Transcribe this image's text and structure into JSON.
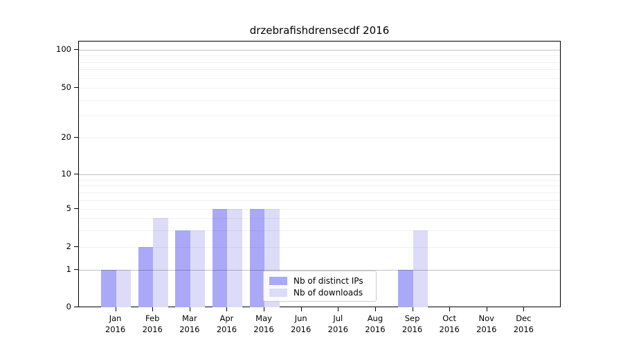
{
  "chart_data": {
    "type": "bar",
    "title": "drzebrafishdrensecdf 2016",
    "categories": [
      "Jan 2016",
      "Feb 2016",
      "Mar 2016",
      "Apr 2016",
      "May 2016",
      "Jun 2016",
      "Jul 2016",
      "Aug 2016",
      "Sep 2016",
      "Oct 2016",
      "Nov 2016",
      "Dec 2016"
    ],
    "series": [
      {
        "name": "Nb of distinct IPs",
        "color": "#a9a9f7",
        "values": [
          1,
          2,
          3,
          5,
          5,
          null,
          null,
          null,
          1,
          null,
          null,
          null
        ]
      },
      {
        "name": "Nb of downloads",
        "color": "#dcdcf8",
        "values": [
          1,
          4,
          3,
          5,
          5,
          null,
          null,
          null,
          3,
          null,
          null,
          null
        ]
      }
    ],
    "y_axis": {
      "scale": "symlog",
      "tick_labels": [
        0,
        1,
        2,
        5,
        10,
        20,
        50,
        100
      ],
      "minor_gridline_values": [
        2,
        3,
        4,
        5,
        6,
        7,
        8,
        9,
        20,
        30,
        40,
        50,
        60,
        70,
        80,
        90
      ],
      "major_gridline_values": [
        1,
        10,
        100
      ],
      "ylim": [
        0,
        100
      ]
    },
    "legend": {
      "position": "lower center"
    },
    "grid": true
  }
}
